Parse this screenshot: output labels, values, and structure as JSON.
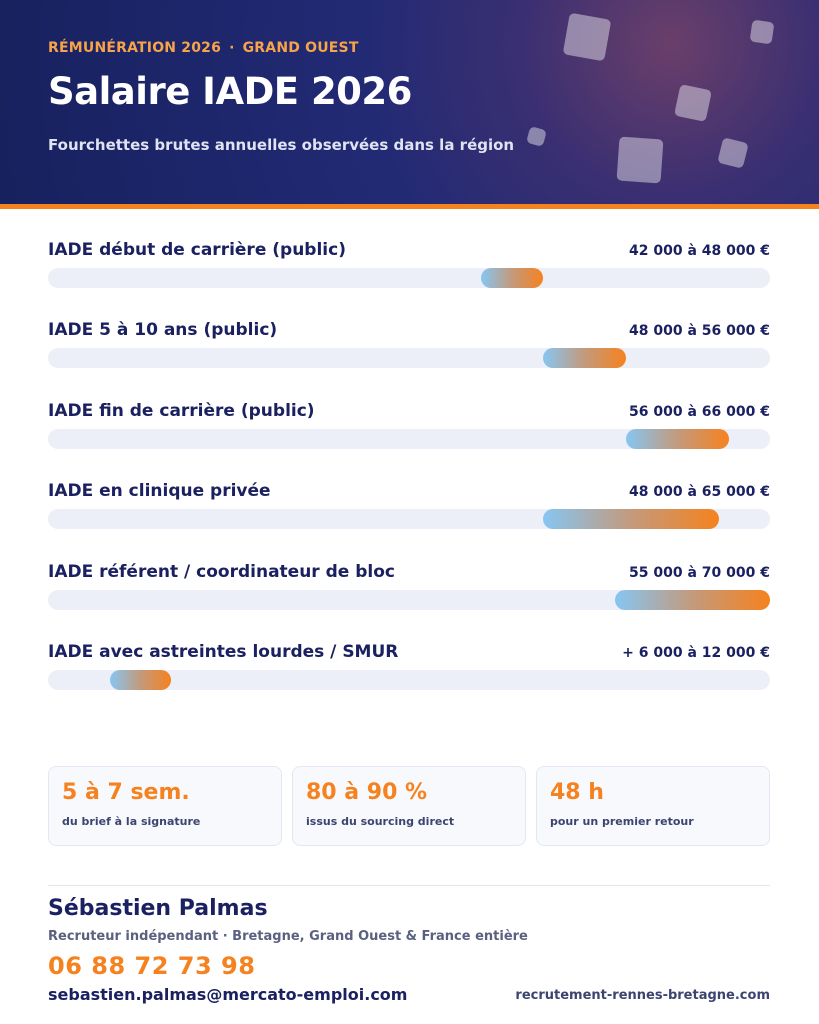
{
  "header": {
    "eyebrow_left": "RÉMUNÉRATION 2026",
    "eyebrow_sep": "·",
    "eyebrow_right": "GRAND OUEST",
    "title": "Salaire IADE 2026",
    "subtitle": "Fourchettes brutes annuelles observées dans la région"
  },
  "salary_rows": [
    {
      "label": "IADE début de carrière (public)",
      "value": "42 000 à 48 000 €",
      "range": [
        0.6,
        0.686
      ]
    },
    {
      "label": "IADE 5 à 10 ans (public)",
      "value": "48 000 à 56 000 €",
      "range": [
        0.686,
        0.8
      ]
    },
    {
      "label": "IADE fin de carrière (public)",
      "value": "56 000 à 66 000 €",
      "range": [
        0.8,
        0.943
      ]
    },
    {
      "label": "IADE en clinique privée",
      "value": "48 000 à 65 000 €",
      "range": [
        0.686,
        0.929
      ]
    },
    {
      "label": "IADE référent / coordinateur de bloc",
      "value": "55 000 à 70 000 €",
      "range": [
        0.786,
        1.0
      ]
    },
    {
      "label": "IADE avec astreintes lourdes / SMUR",
      "value": "+ 6 000 à 12 000 €",
      "range": [
        0.086,
        0.171
      ]
    }
  ],
  "stats": [
    {
      "value": "5 à 7 sem.",
      "caption": "du brief à la signature"
    },
    {
      "value": "80 à 90 %",
      "caption": "issus du sourcing direct"
    },
    {
      "value": "48 h",
      "caption": "pour un premier retour"
    }
  ],
  "contact": {
    "name": "Sébastien Palmas",
    "role": "Recruteur indépendant · Bretagne, Grand Ouest & France entière",
    "phone": "06 88 72 73 98",
    "email": "sebastien.palmas@mercato-emploi.com",
    "website": "recrutement-rennes-bretagne.com"
  },
  "colors": {
    "navy": "#1b2160",
    "accent_orange": "#f5821f",
    "bar_start": "#86c6f2",
    "track": "#eceff7"
  }
}
